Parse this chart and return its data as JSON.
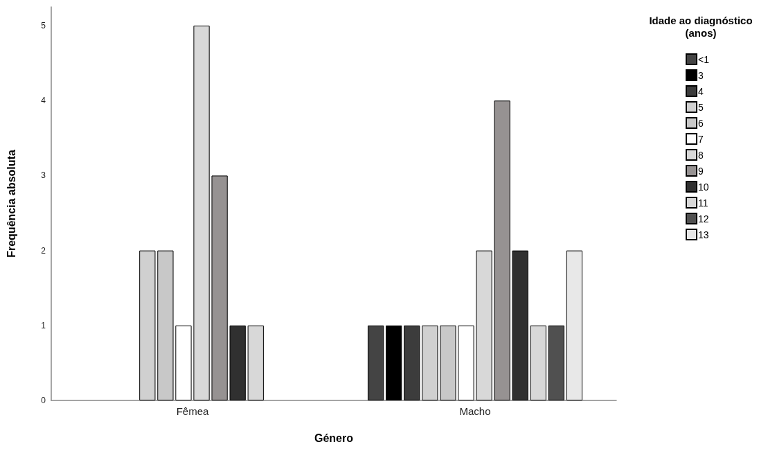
{
  "chart_data": {
    "type": "bar",
    "xlabel": "Género",
    "ylabel": "Frequência absoluta",
    "legend_title": "Idade ao diagnóstico\n(anos)",
    "categories": [
      "Fêmea",
      "Macho"
    ],
    "series": [
      {
        "name": "<1",
        "color": "#444444",
        "values": [
          null,
          1
        ]
      },
      {
        "name": "3",
        "color": "#000000",
        "values": [
          null,
          1
        ]
      },
      {
        "name": "4",
        "color": "#3c3c3c",
        "values": [
          null,
          1
        ]
      },
      {
        "name": "5",
        "color": "#d0d0d0",
        "values": [
          2,
          1
        ]
      },
      {
        "name": "6",
        "color": "#c8c8c8",
        "values": [
          2,
          1
        ]
      },
      {
        "name": "7",
        "color": "#ffffff",
        "values": [
          1,
          1
        ]
      },
      {
        "name": "8",
        "color": "#d8d8d8",
        "values": [
          5,
          2
        ]
      },
      {
        "name": "9",
        "color": "#969292",
        "values": [
          3,
          4
        ]
      },
      {
        "name": "10",
        "color": "#303030",
        "values": [
          1,
          2
        ]
      },
      {
        "name": "11",
        "color": "#d8d8d8",
        "values": [
          1,
          1
        ]
      },
      {
        "name": "12",
        "color": "#505050",
        "values": [
          null,
          1
        ]
      },
      {
        "name": "13",
        "color": "#e8e8e8",
        "values": [
          null,
          2
        ]
      }
    ],
    "ylim": [
      0,
      5.25
    ],
    "yticks": [
      0,
      1,
      2,
      3,
      4,
      5
    ],
    "grid": false,
    "legend": "top right"
  }
}
